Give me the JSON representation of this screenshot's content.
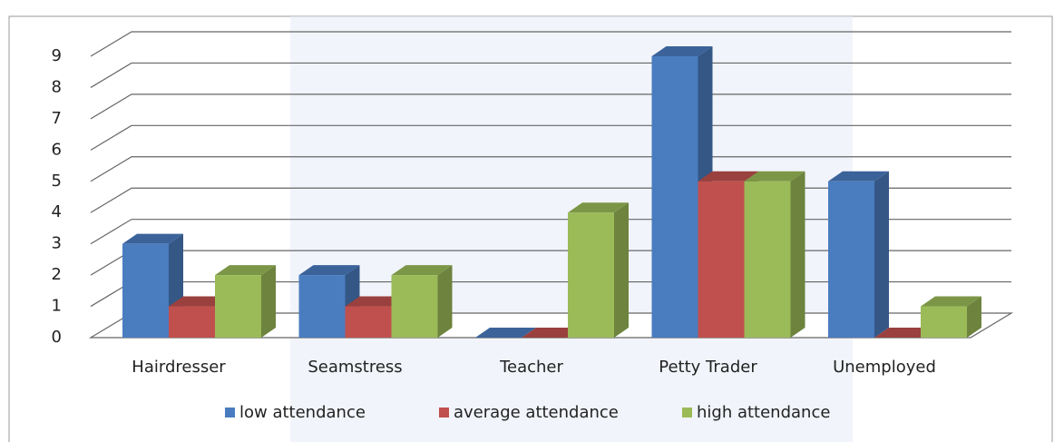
{
  "chart_data": {
    "type": "bar3d",
    "categories": [
      "Hairdresser",
      "Seamstress",
      "Teacher",
      "Petty Trader",
      "Unemployed"
    ],
    "series": [
      {
        "name": "low attendance",
        "color": "#4a7cc0",
        "values": [
          3,
          2,
          0,
          9,
          5
        ]
      },
      {
        "name": "average attendance",
        "color": "#c0504d",
        "values": [
          1,
          1,
          0,
          5,
          0
        ]
      },
      {
        "name": "high attendance",
        "color": "#9bbb59",
        "values": [
          2,
          2,
          4,
          5,
          1
        ]
      }
    ],
    "ylim": [
      0,
      9
    ],
    "yticks": [
      0,
      1,
      2,
      3,
      4,
      5,
      6,
      7,
      8,
      9
    ],
    "grid": true,
    "legend": "bottom"
  }
}
